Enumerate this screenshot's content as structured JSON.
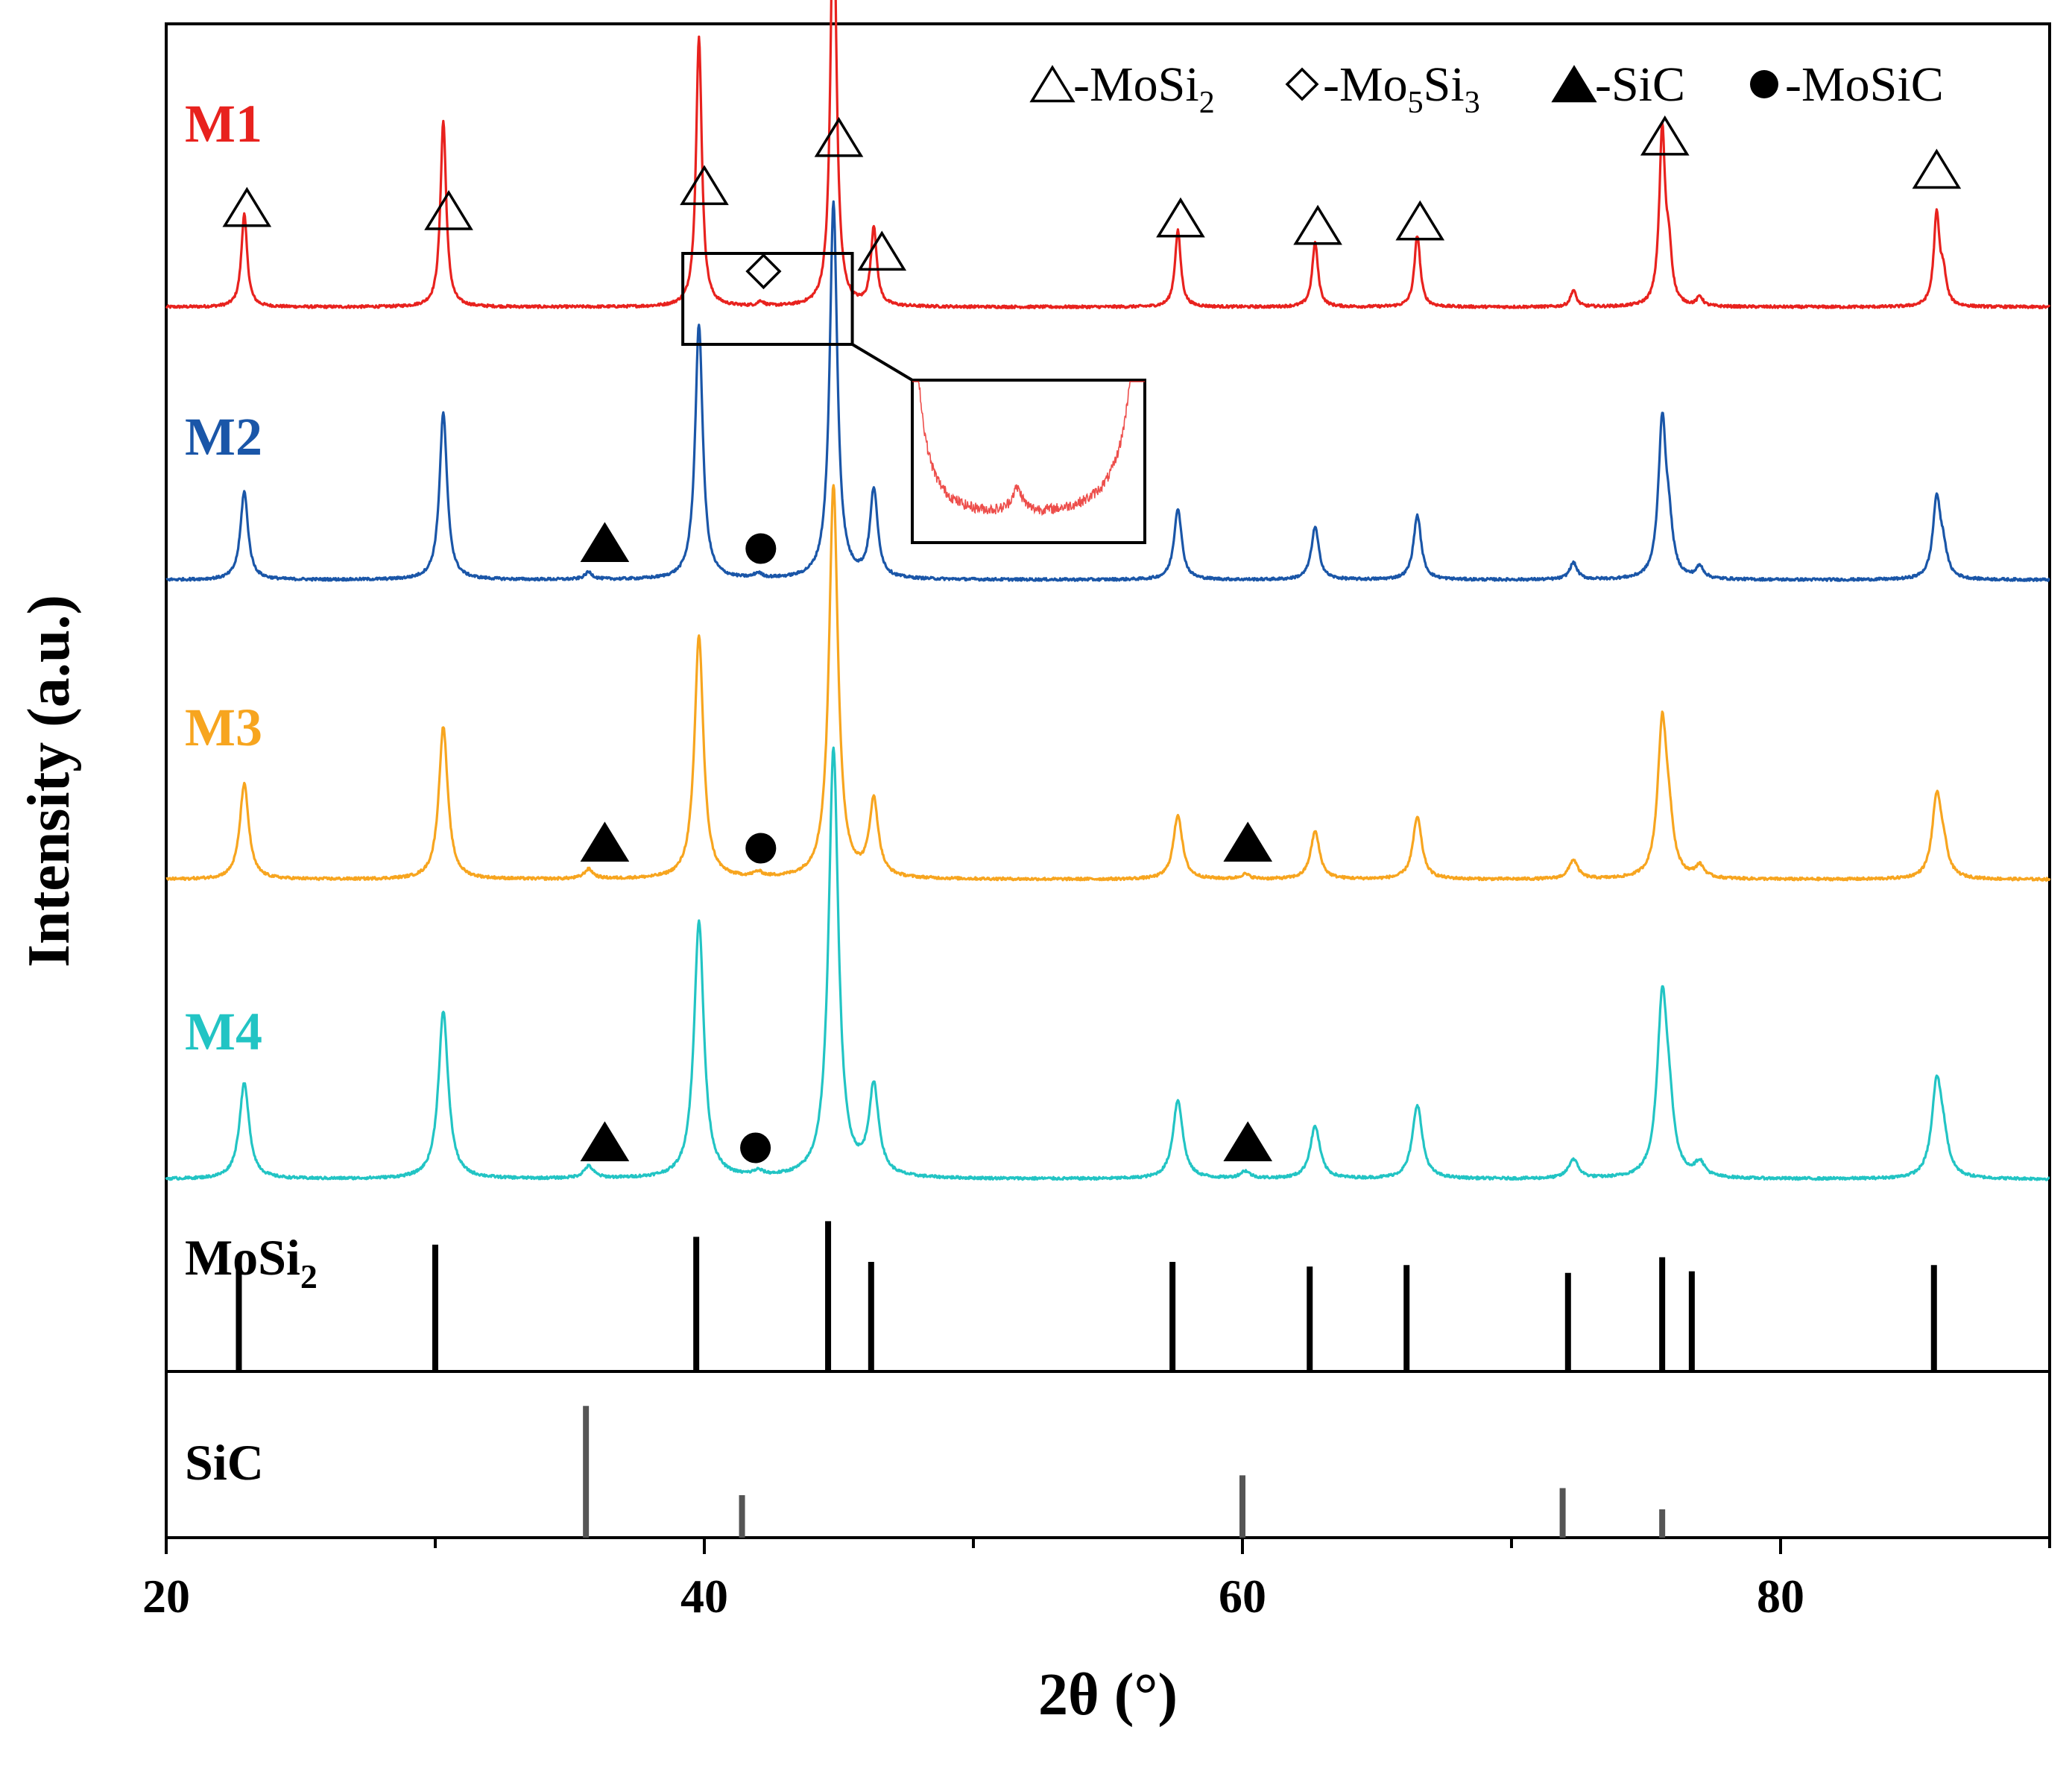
{
  "chart_data": {
    "type": "line",
    "title": "",
    "xlabel": "2θ (°)",
    "ylabel": "Intensity (a.u.)",
    "xlim": [
      20,
      90
    ],
    "xticks": [
      20,
      40,
      60,
      80
    ],
    "x_minor_ticks": [
      30,
      50,
      70,
      90
    ],
    "colors": {
      "M1": "#e8221e",
      "M2": "#1a56a8",
      "M3": "#f7a51f",
      "M4": "#22c4c4",
      "ref_mosi2": "#000000",
      "ref_sic": "#555555",
      "frame": "#000000"
    },
    "background_peak_width": 0.16,
    "series": [
      {
        "name": "M1",
        "label": "M1",
        "peak_width": 0.13,
        "peaks": [
          [
            22.9,
            39
          ],
          [
            30.3,
            78
          ],
          [
            39.8,
            113
          ],
          [
            42.1,
            2
          ],
          [
            44.8,
            180
          ],
          [
            46.3,
            33
          ],
          [
            57.6,
            32
          ],
          [
            62.7,
            27
          ],
          [
            66.5,
            30
          ],
          [
            72.3,
            7
          ],
          [
            75.6,
            73
          ],
          [
            75.85,
            20
          ],
          [
            77.0,
            4
          ],
          [
            85.8,
            38
          ],
          [
            86.05,
            12
          ]
        ],
        "markers": [
          {
            "symbol": "open-triangle",
            "x": 23.0
          },
          {
            "symbol": "open-triangle",
            "x": 30.5
          },
          {
            "symbol": "open-triangle",
            "x": 40.0
          },
          {
            "symbol": "open-triangle",
            "x": 45.0
          },
          {
            "symbol": "open-triangle",
            "x": 46.6
          },
          {
            "symbol": "open-triangle",
            "x": 57.7
          },
          {
            "symbol": "open-triangle",
            "x": 62.8
          },
          {
            "symbol": "open-triangle",
            "x": 66.6
          },
          {
            "symbol": "open-triangle",
            "x": 75.7
          },
          {
            "symbol": "open-triangle",
            "x": 85.8
          },
          {
            "symbol": "open-diamond",
            "x": 42.2
          }
        ]
      },
      {
        "name": "M2",
        "label": "M2",
        "peak_width": 0.17,
        "peaks": [
          [
            22.9,
            37
          ],
          [
            30.3,
            70
          ],
          [
            35.7,
            3
          ],
          [
            39.8,
            107
          ],
          [
            42.0,
            2
          ],
          [
            44.8,
            158
          ],
          [
            46.3,
            37
          ],
          [
            57.6,
            30
          ],
          [
            62.7,
            22
          ],
          [
            66.5,
            27
          ],
          [
            72.3,
            7
          ],
          [
            75.6,
            65
          ],
          [
            75.85,
            17
          ],
          [
            77.0,
            5
          ],
          [
            85.8,
            33
          ],
          [
            86.05,
            10
          ]
        ],
        "markers": [
          {
            "symbol": "filled-triangle",
            "x": 36.3
          },
          {
            "symbol": "filled-circle",
            "x": 42.1
          }
        ]
      },
      {
        "name": "M3",
        "label": "M3",
        "peak_width": 0.2,
        "peaks": [
          [
            22.9,
            40
          ],
          [
            30.3,
            64
          ],
          [
            35.7,
            4
          ],
          [
            39.8,
            102
          ],
          [
            42.0,
            2
          ],
          [
            44.8,
            165
          ],
          [
            46.3,
            32
          ],
          [
            57.6,
            27
          ],
          [
            60.1,
            2
          ],
          [
            62.7,
            20
          ],
          [
            66.5,
            26
          ],
          [
            72.3,
            8
          ],
          [
            75.6,
            63
          ],
          [
            75.85,
            17
          ],
          [
            77.0,
            5
          ],
          [
            85.8,
            33
          ],
          [
            86.05,
            10
          ]
        ],
        "markers": [
          {
            "symbol": "filled-triangle",
            "x": 36.3
          },
          {
            "symbol": "filled-circle",
            "x": 42.1
          },
          {
            "symbol": "filled-triangle",
            "x": 60.2
          }
        ]
      },
      {
        "name": "M4",
        "label": "M4",
        "peak_width": 0.22,
        "peaks": [
          [
            22.9,
            40
          ],
          [
            30.3,
            70
          ],
          [
            35.7,
            5
          ],
          [
            39.8,
            108
          ],
          [
            42.0,
            2
          ],
          [
            44.8,
            180
          ],
          [
            46.3,
            37
          ],
          [
            57.6,
            33
          ],
          [
            60.1,
            3
          ],
          [
            62.7,
            22
          ],
          [
            66.5,
            31
          ],
          [
            72.3,
            8
          ],
          [
            75.6,
            72
          ],
          [
            75.85,
            20
          ],
          [
            77.0,
            6
          ],
          [
            85.8,
            38
          ],
          [
            86.05,
            12
          ]
        ],
        "markers": [
          {
            "symbol": "filled-triangle",
            "x": 36.3
          },
          {
            "symbol": "filled-circle",
            "x": 41.9
          },
          {
            "symbol": "filled-triangle",
            "x": 60.2
          }
        ]
      }
    ],
    "reference_patterns": [
      {
        "name": "MoSi2",
        "label_main": "MoSi",
        "label_sub": "2",
        "lines": [
          [
            22.7,
            71
          ],
          [
            30.0,
            81
          ],
          [
            39.7,
            86
          ],
          [
            44.6,
            96
          ],
          [
            46.2,
            70
          ],
          [
            57.4,
            70
          ],
          [
            62.5,
            67
          ],
          [
            66.1,
            68
          ],
          [
            72.1,
            63
          ],
          [
            75.6,
            73
          ],
          [
            76.7,
            64
          ],
          [
            85.7,
            68
          ]
        ]
      },
      {
        "name": "SiC",
        "label_main": "SiC",
        "label_sub": "",
        "lines": [
          [
            35.6,
            93
          ],
          [
            41.4,
            30
          ],
          [
            60.0,
            44
          ],
          [
            71.9,
            35
          ],
          [
            75.6,
            20
          ]
        ]
      }
    ],
    "legend": {
      "placement": "top-right",
      "entries": [
        {
          "symbol": "open-triangle",
          "prefix": "-",
          "main": "MoSi",
          "sub": "2",
          "after": "",
          "sub2": ""
        },
        {
          "symbol": "open-diamond",
          "prefix": "-",
          "main": "Mo",
          "sub": "5",
          "after": "Si",
          "sub2": "3"
        },
        {
          "symbol": "filled-triangle",
          "prefix": "-",
          "main": "SiC",
          "sub": "",
          "after": "",
          "sub2": ""
        },
        {
          "symbol": "filled-circle",
          "prefix": "-",
          "main": "MoSiC",
          "sub": "",
          "after": "",
          "sub2": ""
        }
      ]
    }
  }
}
